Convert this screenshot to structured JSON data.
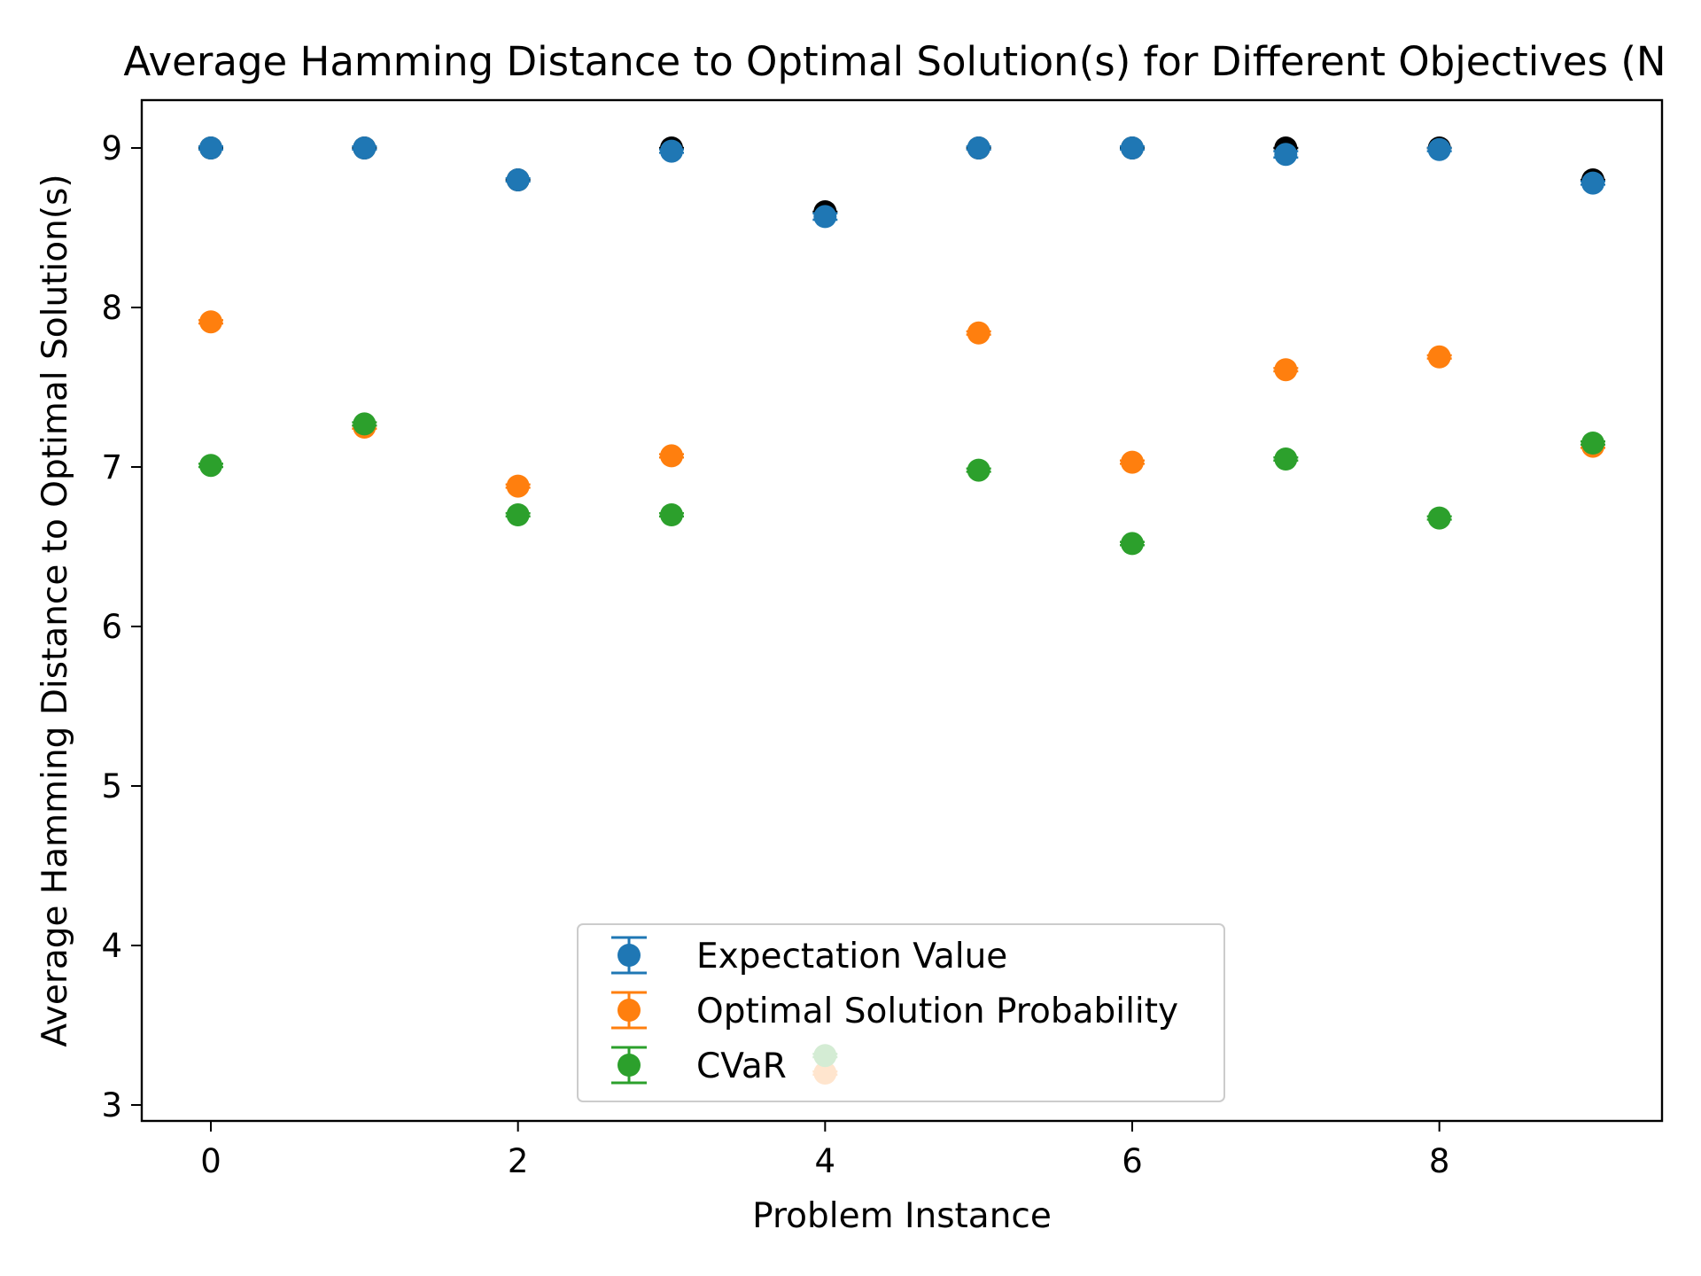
{
  "chart_data": {
    "type": "scatter",
    "title": "Average Hamming Distance to Optimal Solution(s) for Different Objectives (N",
    "xlabel": "Problem Instance",
    "ylabel": "Average Hamming Distance to Optimal Solution(s)",
    "xlim": [
      -0.45,
      9.45
    ],
    "ylim": [
      2.9,
      9.3
    ],
    "xticks": [
      0,
      2,
      4,
      6,
      8
    ],
    "xtick_labels": [
      "0",
      "2",
      "4",
      "6",
      "8"
    ],
    "yticks": [
      3,
      4,
      5,
      6,
      7,
      8,
      9
    ],
    "ytick_labels": [
      "3",
      "4",
      "5",
      "6",
      "7",
      "8",
      "9"
    ],
    "grid": false,
    "legend_position": "lower-center",
    "x": [
      0,
      1,
      2,
      3,
      4,
      5,
      6,
      7,
      8,
      9
    ],
    "reference_points": {
      "color": "#000000",
      "values": [
        9.0,
        9.0,
        8.8,
        9.0,
        8.6,
        9.0,
        9.0,
        9.0,
        9.0,
        8.8
      ]
    },
    "series": [
      {
        "name": "Expectation Value",
        "color": "#1f77b4",
        "values": [
          9.0,
          9.0,
          8.8,
          8.98,
          8.57,
          9.0,
          9.0,
          8.96,
          8.99,
          8.78
        ],
        "errors": [
          0.01,
          0.01,
          0.01,
          0.01,
          0.02,
          0.01,
          0.01,
          0.02,
          0.01,
          0.01
        ]
      },
      {
        "name": "Optimal Solution Probability",
        "color": "#ff7f0e",
        "values": [
          7.91,
          7.25,
          6.88,
          7.07,
          3.2,
          7.84,
          7.03,
          7.61,
          7.69,
          7.13
        ],
        "errors": [
          0.01,
          0.01,
          0.01,
          0.01,
          0.01,
          0.01,
          0.01,
          0.01,
          0.01,
          0.01
        ]
      },
      {
        "name": "CVaR",
        "color": "#2ca02c",
        "values": [
          7.01,
          7.27,
          6.7,
          6.7,
          3.31,
          6.98,
          6.52,
          7.05,
          6.68,
          7.15
        ],
        "errors": [
          0.01,
          0.01,
          0.01,
          0.01,
          0.01,
          0.01,
          0.01,
          0.01,
          0.01,
          0.01
        ]
      }
    ]
  }
}
